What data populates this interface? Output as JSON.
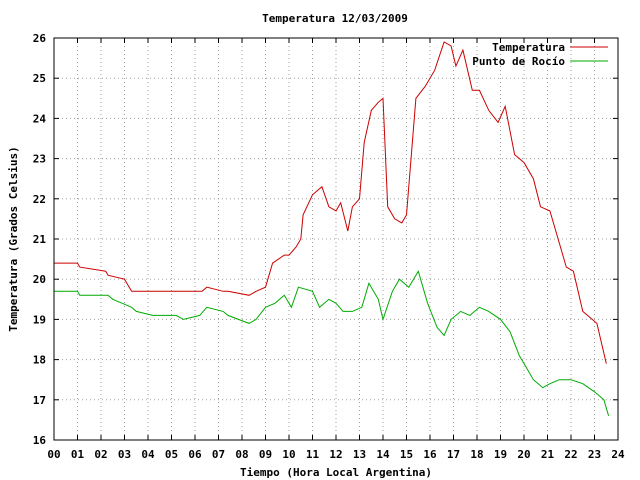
{
  "chart_data": {
    "type": "line",
    "title": "Temperatura 12/03/2009",
    "xlabel": "Tiempo (Hora Local Argentina)",
    "ylabel": "Temperatura (Grados Celsius)",
    "xlim": [
      0,
      24
    ],
    "ylim": [
      16,
      26
    ],
    "x_ticks": [
      "00",
      "01",
      "02",
      "03",
      "04",
      "05",
      "06",
      "07",
      "08",
      "09",
      "10",
      "11",
      "12",
      "13",
      "14",
      "15",
      "16",
      "17",
      "18",
      "19",
      "20",
      "21",
      "22",
      "23",
      "24"
    ],
    "y_ticks": [
      "16",
      "17",
      "18",
      "19",
      "20",
      "21",
      "22",
      "23",
      "24",
      "25",
      "26"
    ],
    "grid": true,
    "legend_position": "top-right",
    "series": [
      {
        "name": "Temperatura",
        "color": "#cc0000",
        "x": [
          0,
          1.0,
          1.1,
          2.2,
          2.3,
          3.0,
          3.3,
          6.3,
          6.5,
          7.2,
          7.4,
          8.3,
          8.6,
          9.0,
          9.3,
          9.8,
          10.0,
          10.3,
          10.5,
          10.6,
          11.0,
          11.2,
          11.4,
          11.7,
          12.0,
          12.2,
          12.5,
          12.7,
          13.0,
          13.2,
          13.5,
          13.8,
          14.0,
          14.2,
          14.5,
          14.8,
          15.0,
          15.4,
          15.8,
          16.2,
          16.6,
          16.9,
          17.1,
          17.4,
          17.8,
          18.1,
          18.5,
          18.9,
          19.2,
          19.6,
          20.0,
          20.4,
          20.7,
          21.1,
          21.5,
          21.8,
          22.1,
          22.5,
          23.1,
          23.5
        ],
        "y": [
          20.4,
          20.4,
          20.3,
          20.2,
          20.1,
          20.0,
          19.7,
          19.7,
          19.8,
          19.7,
          19.7,
          19.6,
          19.7,
          19.8,
          20.4,
          20.6,
          20.6,
          20.8,
          21.0,
          21.6,
          22.1,
          22.2,
          22.3,
          21.8,
          21.7,
          21.9,
          21.2,
          21.8,
          22.0,
          23.4,
          24.2,
          24.4,
          24.5,
          21.8,
          21.5,
          21.4,
          21.6,
          24.5,
          24.8,
          25.2,
          25.9,
          25.8,
          25.3,
          25.7,
          24.7,
          24.7,
          24.2,
          23.9,
          24.3,
          23.1,
          22.9,
          22.5,
          21.8,
          21.7,
          20.9,
          20.3,
          20.2,
          19.2,
          18.9,
          17.9
        ]
      },
      {
        "name": "Punto de Rocío",
        "color": "#00aa00",
        "x": [
          0,
          1.0,
          1.1,
          2.3,
          2.5,
          3.3,
          3.5,
          4.2,
          4.5,
          5.2,
          5.5,
          6.2,
          6.5,
          7.2,
          7.4,
          8.3,
          8.6,
          9.0,
          9.4,
          9.8,
          10.1,
          10.4,
          11.0,
          11.3,
          11.7,
          12.0,
          12.3,
          12.7,
          13.1,
          13.4,
          13.8,
          14.0,
          14.4,
          14.7,
          15.1,
          15.5,
          15.9,
          16.3,
          16.6,
          16.9,
          17.3,
          17.7,
          18.1,
          18.5,
          19.0,
          19.4,
          19.8,
          20.1,
          20.4,
          20.8,
          21.1,
          21.5,
          22.0,
          22.5,
          23.0,
          23.4,
          23.6
        ],
        "y": [
          19.7,
          19.7,
          19.6,
          19.6,
          19.5,
          19.3,
          19.2,
          19.1,
          19.1,
          19.1,
          19.0,
          19.1,
          19.3,
          19.2,
          19.1,
          18.9,
          19.0,
          19.3,
          19.4,
          19.6,
          19.3,
          19.8,
          19.7,
          19.3,
          19.5,
          19.4,
          19.2,
          19.2,
          19.3,
          19.9,
          19.5,
          19.0,
          19.7,
          20.0,
          19.8,
          20.2,
          19.4,
          18.8,
          18.6,
          19.0,
          19.2,
          19.1,
          19.3,
          19.2,
          19.0,
          18.7,
          18.1,
          17.8,
          17.5,
          17.3,
          17.4,
          17.5,
          17.5,
          17.4,
          17.2,
          17.0,
          16.6
        ]
      }
    ]
  }
}
